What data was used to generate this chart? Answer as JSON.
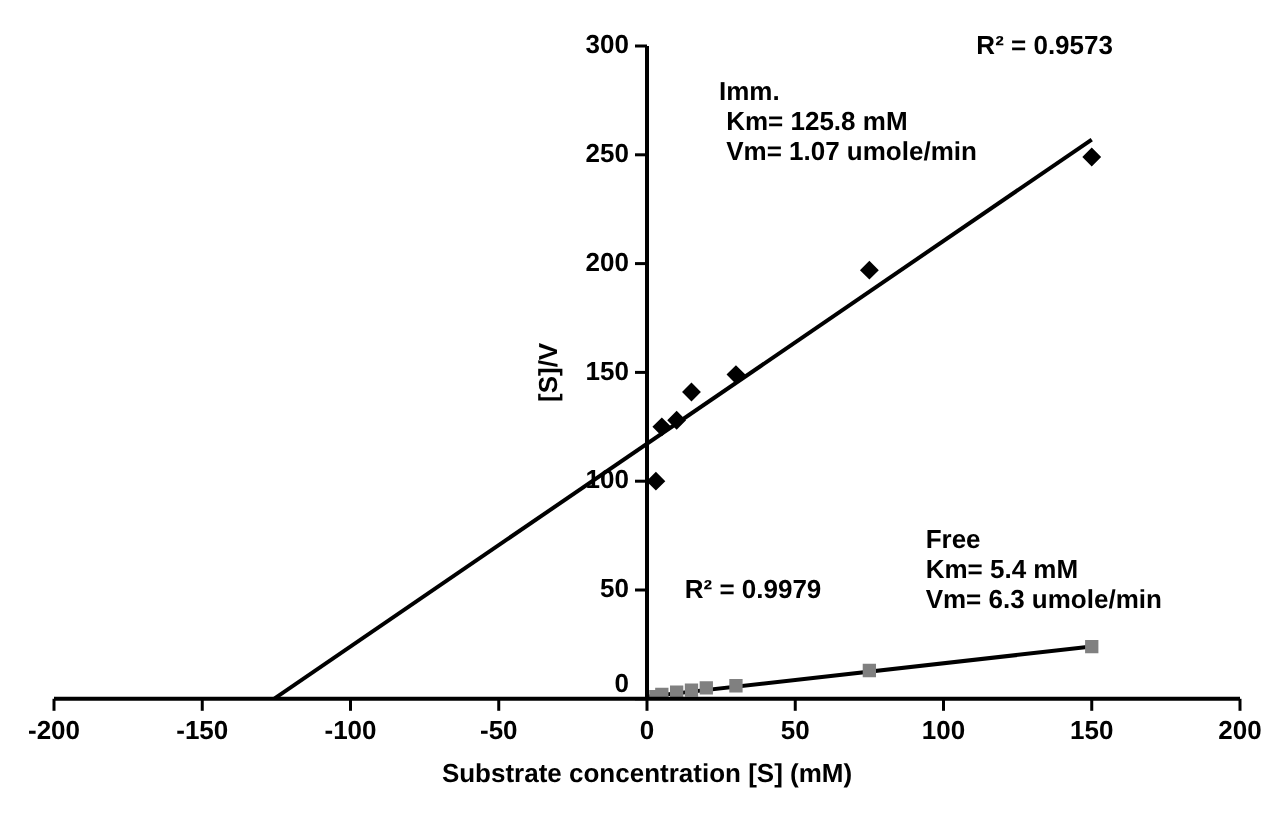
{
  "chart_data": {
    "type": "scatter",
    "xlabel": "Substrate concentration [S] (mM)",
    "ylabel": "[S]/V",
    "xlim": [
      -200,
      200
    ],
    "xticks": [
      -200,
      -150,
      -100,
      -50,
      0,
      50,
      100,
      150,
      200
    ],
    "ylim": [
      0,
      300
    ],
    "yticks": [
      0,
      50,
      100,
      150,
      200,
      250,
      300
    ],
    "grid": false,
    "legend": false,
    "series": [
      {
        "marker": "diamond",
        "color": "#000000",
        "x": [
          3,
          5,
          10,
          15,
          30,
          75,
          150
        ],
        "values": [
          100,
          125,
          128,
          141,
          149,
          197,
          249
        ]
      },
      {
        "type": "line",
        "marker": "none",
        "color": "#000000",
        "x": [
          -125.8,
          150
        ],
        "values": [
          0,
          257
        ]
      },
      {
        "marker": "square",
        "color": "#808080",
        "x": [
          3,
          5,
          10,
          15,
          20,
          30,
          75,
          150
        ],
        "values": [
          1,
          2,
          3,
          4,
          5,
          6,
          13,
          24
        ]
      },
      {
        "type": "line",
        "marker": "none",
        "color": "#000000",
        "x": [
          0,
          150
        ],
        "values": [
          1,
          24
        ]
      }
    ],
    "annotations": [
      "R² = 0.9573",
      "Imm.\n Km= 125.8 mM\n Vm= 1.07 umole/min",
      "Free\nKm= 5.4 mM\nVm= 6.3 umole/min",
      "R² = 0.9979"
    ]
  }
}
